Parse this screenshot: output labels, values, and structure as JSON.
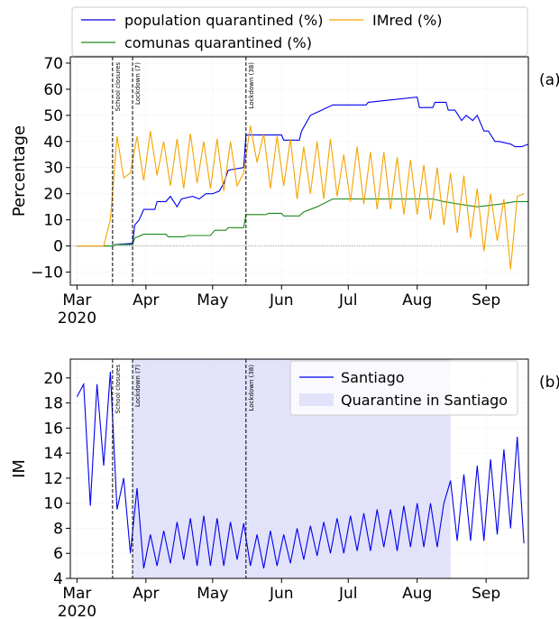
{
  "chart_data": [
    {
      "type": "line",
      "panel_label": "(a)",
      "ylabel": "Percentage",
      "xlim": [
        -3,
        203
      ],
      "ylim": [
        -15,
        72.4
      ],
      "xticks": [
        {
          "value": 0,
          "label": "Mar\n2020"
        },
        {
          "value": 31,
          "label": "Apr"
        },
        {
          "value": 61,
          "label": "May"
        },
        {
          "value": 92,
          "label": "Jun"
        },
        {
          "value": 122,
          "label": "Jul"
        },
        {
          "value": 153,
          "label": "Aug"
        },
        {
          "value": 184,
          "label": "Sep"
        }
      ],
      "yticks": [
        {
          "value": -10,
          "label": "−10"
        },
        0,
        10,
        20,
        30,
        40,
        50,
        60,
        70
      ],
      "grid": true,
      "hline": 0,
      "vlines": [
        {
          "x": 16,
          "text": "School closures"
        },
        {
          "x": 25,
          "text": "Lockdown (7)"
        },
        {
          "x": 76,
          "text": "Lockdown (38)"
        }
      ],
      "series": [
        {
          "name": "population quarantined (%)",
          "color": "#0000ee",
          "x": [
            0,
            16,
            17,
            25,
            26,
            28,
            30,
            35,
            36,
            40,
            42,
            45,
            47,
            52,
            55,
            58,
            61,
            64,
            66,
            68,
            75,
            76,
            92,
            93,
            100,
            101,
            105,
            110,
            115,
            130,
            131,
            153,
            154,
            160,
            161,
            166,
            167,
            170,
            173,
            175,
            178,
            180,
            183,
            185,
            188,
            190,
            195,
            197,
            200,
            203
          ],
          "values": [
            0,
            0,
            0.5,
            1,
            8,
            10,
            14,
            14,
            17,
            17,
            19,
            15,
            18,
            19,
            18,
            20,
            20,
            21,
            24,
            29,
            30,
            42.5,
            42.5,
            40.5,
            40.5,
            44,
            50,
            52,
            54,
            54,
            55,
            57,
            53,
            53,
            55,
            55,
            52,
            52,
            48,
            50,
            48,
            50,
            44,
            44,
            40,
            40,
            39,
            38,
            38,
            39
          ]
        },
        {
          "name": "comunas quarantined (%)",
          "color": "#1a8a1a",
          "x": [
            0,
            16,
            17,
            25,
            26,
            30,
            40,
            41,
            48,
            50,
            60,
            62,
            67,
            68,
            75,
            76,
            85,
            86,
            92,
            93,
            100,
            102,
            108,
            115,
            160,
            165,
            172,
            180,
            190,
            197,
            203
          ],
          "values": [
            0,
            0,
            0.5,
            0.5,
            3,
            4.5,
            4.5,
            3.5,
            3.5,
            4,
            4,
            6,
            6,
            7,
            7,
            12,
            12,
            12.5,
            12.5,
            11.5,
            11.5,
            13,
            15,
            18,
            18,
            17,
            16,
            15,
            16,
            17,
            17
          ]
        },
        {
          "name": "IMred (%)",
          "color": "#f5a300",
          "x": [
            0,
            3,
            6,
            9,
            12,
            15,
            18,
            21,
            24,
            27,
            30,
            33,
            36,
            39,
            42,
            45,
            48,
            51,
            54,
            57,
            60,
            63,
            66,
            69,
            72,
            75,
            78,
            81,
            84,
            87,
            90,
            93,
            96,
            99,
            102,
            105,
            108,
            111,
            114,
            117,
            120,
            123,
            126,
            129,
            132,
            135,
            138,
            141,
            144,
            147,
            150,
            153,
            156,
            159,
            162,
            165,
            168,
            171,
            174,
            177,
            180,
            183,
            186,
            189,
            192,
            195,
            198,
            201
          ],
          "values": [
            0,
            0,
            0,
            0,
            0,
            10,
            42,
            26,
            28,
            42,
            25,
            44,
            27,
            40,
            23,
            41,
            22,
            43,
            24,
            40,
            22,
            41,
            21,
            40,
            23,
            28,
            46,
            32,
            43,
            22,
            42,
            23,
            41,
            18,
            38,
            20,
            40,
            18,
            41,
            19,
            35,
            17,
            38,
            16,
            36,
            14,
            36,
            14,
            34,
            12,
            33,
            12,
            31,
            10,
            30,
            8,
            28,
            5,
            27,
            3,
            22,
            -2,
            20,
            2,
            18,
            -9,
            19,
            20
          ]
        }
      ]
    },
    {
      "type": "line",
      "panel_label": "(b)",
      "ylabel": "IM",
      "xlim": [
        -3,
        203
      ],
      "ylim": [
        4,
        21.5
      ],
      "xticks": [
        {
          "value": 0,
          "label": "Mar\n2020"
        },
        {
          "value": 31,
          "label": "Apr"
        },
        {
          "value": 61,
          "label": "May"
        },
        {
          "value": 92,
          "label": "Jun"
        },
        {
          "value": 122,
          "label": "Jul"
        },
        {
          "value": 153,
          "label": "Aug"
        },
        {
          "value": 184,
          "label": "Sep"
        }
      ],
      "yticks": [
        4,
        6,
        8,
        10,
        12,
        14,
        16,
        18,
        20
      ],
      "grid": true,
      "vlines": [
        {
          "x": 16,
          "text": "School closures"
        },
        {
          "x": 25,
          "text": "Lockdown (7)"
        },
        {
          "x": 76,
          "text": "Lockdown (38)"
        }
      ],
      "spans": [
        {
          "name": "Quarantine in Santiago",
          "color": "#e2e2fb",
          "x": [
            25,
            168
          ]
        }
      ],
      "series": [
        {
          "name": "Santiago",
          "color": "#0000ee",
          "x": [
            0,
            3,
            6,
            9,
            12,
            15,
            18,
            21,
            24,
            27,
            30,
            33,
            36,
            39,
            42,
            45,
            48,
            51,
            54,
            57,
            60,
            63,
            66,
            69,
            72,
            75,
            78,
            81,
            84,
            87,
            90,
            93,
            96,
            99,
            102,
            105,
            108,
            111,
            114,
            117,
            120,
            123,
            126,
            129,
            132,
            135,
            138,
            141,
            144,
            147,
            150,
            153,
            156,
            159,
            162,
            165,
            168,
            171,
            174,
            177,
            180,
            183,
            186,
            189,
            192,
            195,
            198,
            201
          ],
          "values": [
            18.5,
            19.5,
            9.8,
            19.5,
            13,
            20.5,
            9.5,
            12,
            6,
            11.2,
            4.8,
            7.5,
            5,
            7.8,
            5.2,
            8.5,
            5.5,
            8.8,
            5,
            9,
            5,
            8.8,
            5,
            8.5,
            5.5,
            8.4,
            5,
            7.5,
            4.8,
            7.8,
            5,
            7.5,
            5.2,
            8,
            5.5,
            8.2,
            5.8,
            8.5,
            6,
            8.8,
            6,
            9,
            6.2,
            9.2,
            6.2,
            9.5,
            6.5,
            9.5,
            6.2,
            9.8,
            6.5,
            10,
            6.5,
            10,
            6.5,
            10,
            11.8,
            7,
            12.3,
            7,
            13,
            7,
            13.5,
            7.5,
            14.3,
            8,
            15.3,
            6.8
          ]
        }
      ]
    }
  ]
}
